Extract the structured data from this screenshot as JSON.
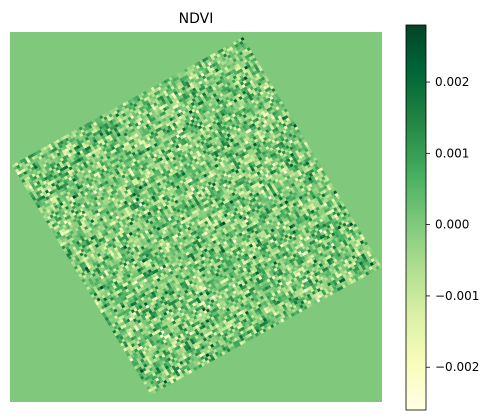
{
  "chart_data": {
    "type": "heatmap",
    "title": "NDVI",
    "xlabel": "",
    "ylabel": "",
    "axes_visible": false,
    "grid": false,
    "background_value": 0.0,
    "rotation_deg": -32,
    "field": "random noise within rotated square, mean 0.0",
    "colormap": {
      "name": "YlGn",
      "stops": [
        "#ffffe5",
        "#f7fcb9",
        "#d9f0a3",
        "#addd8e",
        "#78c679",
        "#41ab5d",
        "#238443",
        "#006837",
        "#004529"
      ]
    },
    "colorbar": {
      "min": -0.0026,
      "max": 0.0028,
      "ticks": [
        -0.002,
        -0.001,
        0.0,
        0.001,
        0.002
      ],
      "tick_labels": [
        "−0.002",
        "−0.001",
        "0.000",
        "0.001",
        "0.002"
      ]
    }
  }
}
